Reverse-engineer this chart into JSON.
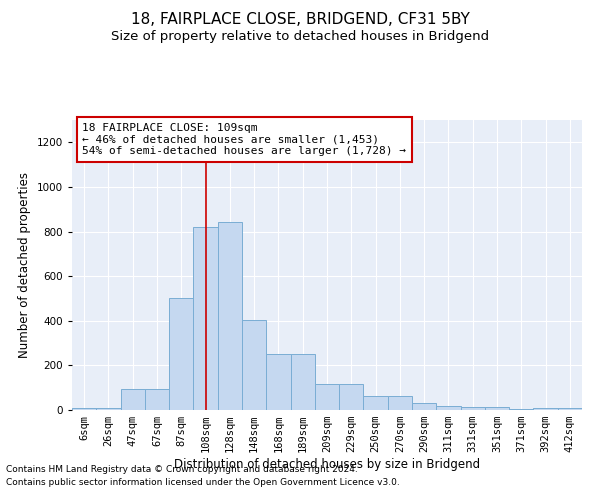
{
  "title": "18, FAIRPLACE CLOSE, BRIDGEND, CF31 5BY",
  "subtitle": "Size of property relative to detached houses in Bridgend",
  "xlabel": "Distribution of detached houses by size in Bridgend",
  "ylabel": "Number of detached properties",
  "bin_labels": [
    "6sqm",
    "26sqm",
    "47sqm",
    "67sqm",
    "87sqm",
    "108sqm",
    "128sqm",
    "148sqm",
    "168sqm",
    "189sqm",
    "209sqm",
    "229sqm",
    "250sqm",
    "270sqm",
    "290sqm",
    "311sqm",
    "331sqm",
    "351sqm",
    "371sqm",
    "392sqm",
    "412sqm"
  ],
  "bar_heights": [
    10,
    10,
    95,
    95,
    500,
    820,
    845,
    405,
    250,
    250,
    115,
    115,
    65,
    65,
    30,
    20,
    15,
    15,
    5,
    10,
    10
  ],
  "bar_color": "#c5d8f0",
  "bar_edge_color": "#7aadd4",
  "vline_x_idx": 5,
  "vline_color": "#cc0000",
  "annotation_text": "18 FAIRPLACE CLOSE: 109sqm\n← 46% of detached houses are smaller (1,453)\n54% of semi-detached houses are larger (1,728) →",
  "annotation_box_color": "#ffffff",
  "annotation_box_edge": "#cc0000",
  "ylim": [
    0,
    1300
  ],
  "yticks": [
    0,
    200,
    400,
    600,
    800,
    1000,
    1200
  ],
  "footnote1": "Contains HM Land Registry data © Crown copyright and database right 2024.",
  "footnote2": "Contains public sector information licensed under the Open Government Licence v3.0.",
  "bg_color": "#e8eef8",
  "title_fontsize": 11,
  "subtitle_fontsize": 9.5,
  "axis_label_fontsize": 8.5,
  "tick_fontsize": 7.5,
  "annotation_fontsize": 8,
  "footnote_fontsize": 6.5
}
